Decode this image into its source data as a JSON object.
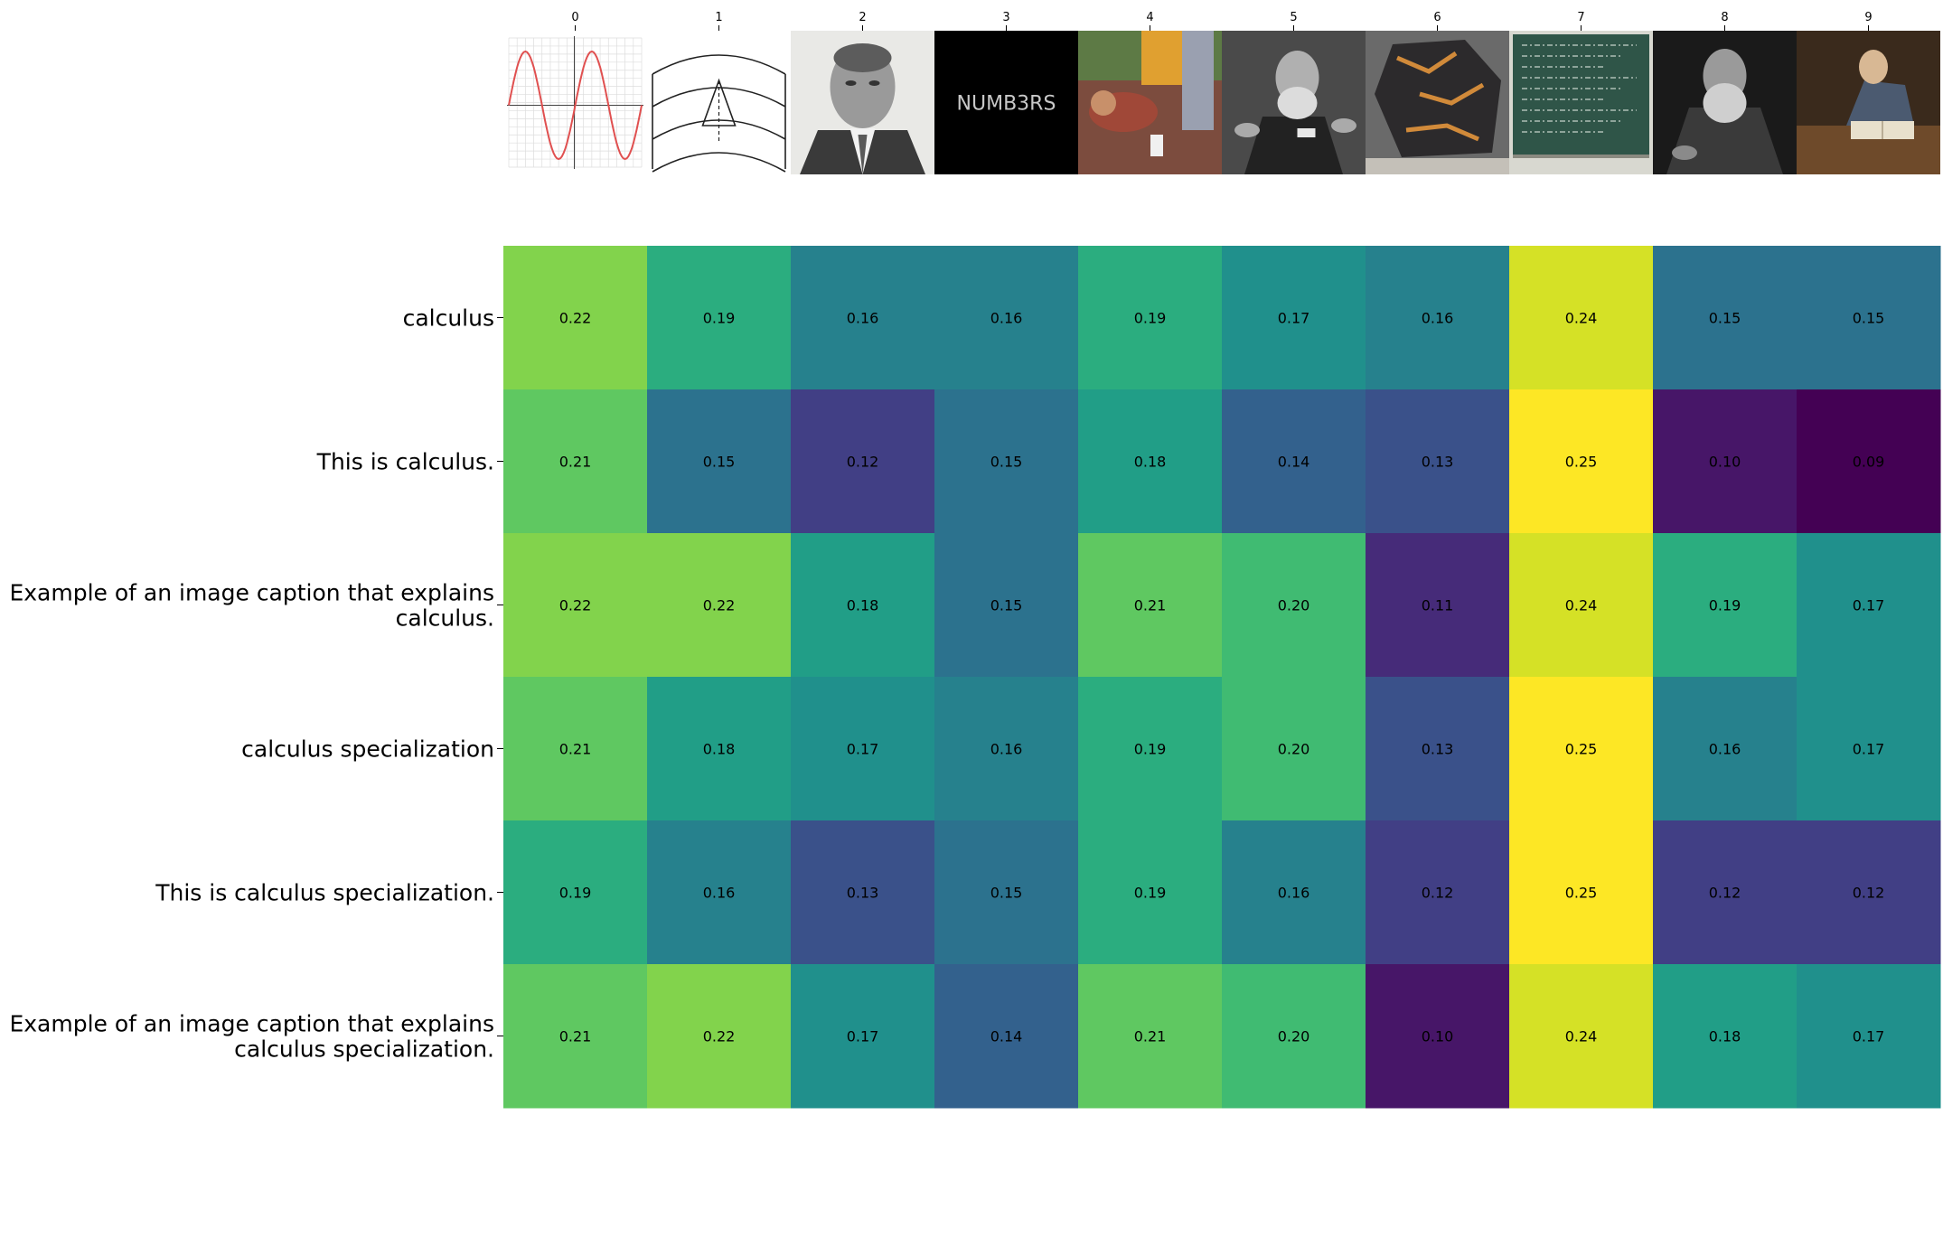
{
  "chart_data": {
    "type": "heatmap",
    "colormap": "viridis",
    "vmin": 0.09,
    "vmax": 0.25,
    "columns": [
      "0",
      "1",
      "2",
      "3",
      "4",
      "5",
      "6",
      "7",
      "8",
      "9"
    ],
    "column_images": [
      "sine-wave-graph-thumbnail",
      "line-diagram-thumbnail",
      "man-portrait-photo-thumbnail",
      "numb3rs-title-card-thumbnail",
      "person-on-ground-photo-thumbnail",
      "bearded-man-lecturing-photo-thumbnail",
      "rock-specimen-photo-thumbnail",
      "chalkboard-equations-photo-thumbnail",
      "bearded-man-portrait-painting-thumbnail",
      "man-reading-book-painting-thumbnail"
    ],
    "thumbnail_texts": {
      "numb3rs": "NUMB3RS"
    },
    "rows": [
      [
        "calculus"
      ],
      [
        "This is calculus."
      ],
      [
        "Example of an image caption that explains",
        "calculus."
      ],
      [
        "calculus specialization"
      ],
      [
        "This is calculus specialization."
      ],
      [
        "Example of an image caption that explains",
        "calculus specialization."
      ]
    ],
    "values": [
      [
        0.22,
        0.19,
        0.16,
        0.16,
        0.19,
        0.17,
        0.16,
        0.24,
        0.15,
        0.15
      ],
      [
        0.21,
        0.15,
        0.12,
        0.15,
        0.18,
        0.14,
        0.13,
        0.25,
        0.1,
        0.09
      ],
      [
        0.22,
        0.22,
        0.18,
        0.15,
        0.21,
        0.2,
        0.11,
        0.24,
        0.19,
        0.17
      ],
      [
        0.21,
        0.18,
        0.17,
        0.16,
        0.19,
        0.2,
        0.13,
        0.25,
        0.16,
        0.17
      ],
      [
        0.19,
        0.16,
        0.13,
        0.15,
        0.19,
        0.16,
        0.12,
        0.25,
        0.12,
        0.12
      ],
      [
        0.21,
        0.22,
        0.17,
        0.14,
        0.21,
        0.2,
        0.1,
        0.24,
        0.18,
        0.17
      ]
    ]
  }
}
